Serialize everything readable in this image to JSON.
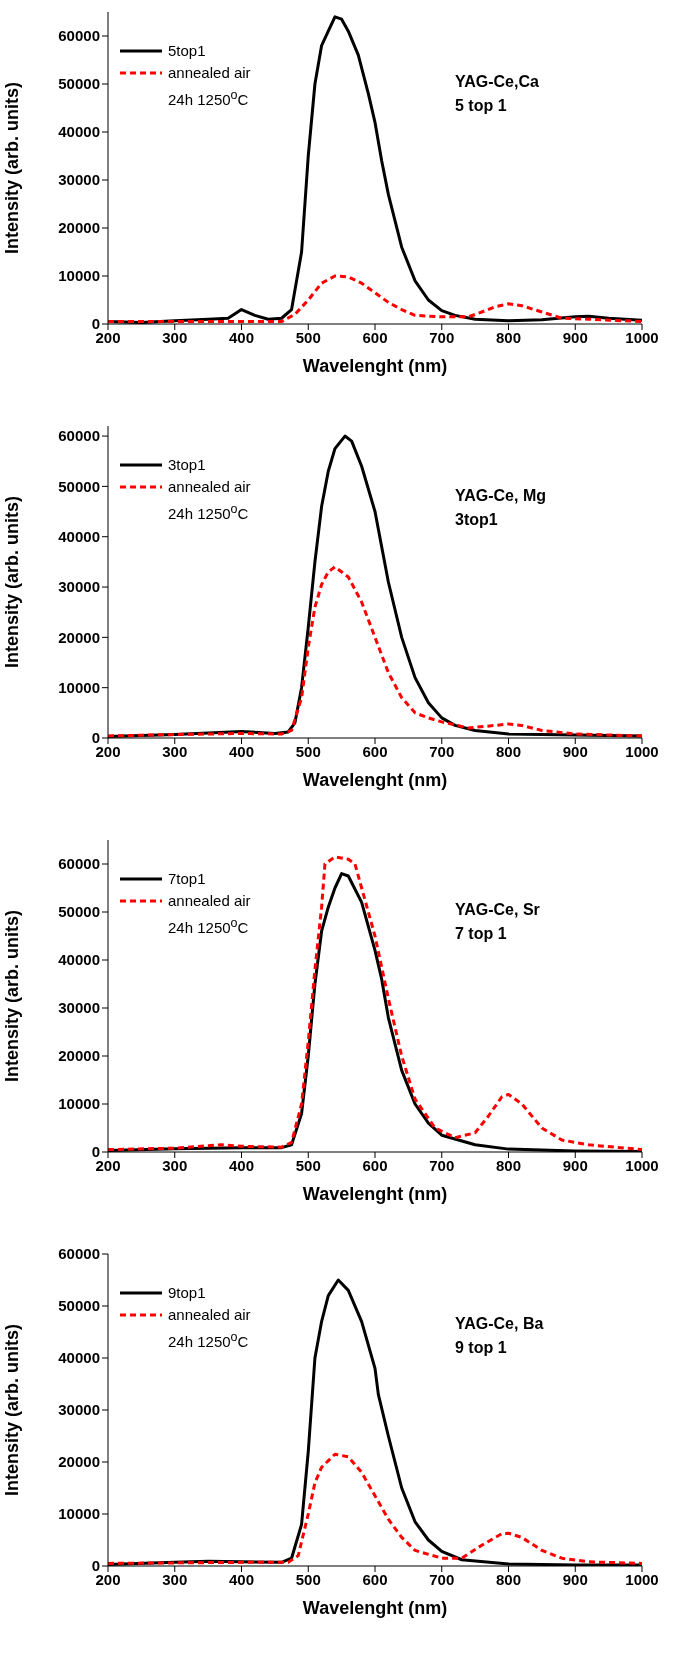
{
  "chart_data": [
    {
      "type": "line",
      "xlabel": "Wavelenght (nm)",
      "ylabel": "Intensity (arb. units)",
      "xlim": [
        200,
        1000
      ],
      "xticks": [
        200,
        300,
        400,
        500,
        600,
        700,
        800,
        900,
        1000
      ],
      "ylim": [
        0,
        65000
      ],
      "yticks": [
        0,
        10000,
        20000,
        30000,
        40000,
        50000,
        60000
      ],
      "legend": "top left",
      "annotations": [
        "YAG-Ce,Ca\n5 top 1"
      ],
      "series": [
        {
          "name": "5top1",
          "color": "#000000",
          "line_style": "solid",
          "x": [
            200,
            250,
            300,
            350,
            380,
            400,
            420,
            440,
            460,
            475,
            490,
            500,
            510,
            520,
            530,
            540,
            550,
            560,
            575,
            590,
            600,
            610,
            620,
            640,
            660,
            680,
            700,
            720,
            750,
            800,
            850,
            900,
            920,
            950,
            1000
          ],
          "values": [
            500,
            300,
            700,
            1000,
            1200,
            3000,
            1800,
            1000,
            1200,
            3000,
            15000,
            35000,
            50000,
            58000,
            61000,
            64000,
            63500,
            61000,
            56000,
            48000,
            42000,
            34000,
            27000,
            16000,
            9000,
            5000,
            2800,
            1800,
            1000,
            700,
            900,
            1500,
            1600,
            1200,
            800
          ]
        },
        {
          "name": "annealed air\n24h 1250$^{o}$C",
          "color": "#ff0000",
          "line_style": "dashed",
          "x": [
            200,
            300,
            400,
            460,
            480,
            500,
            520,
            540,
            560,
            580,
            600,
            620,
            640,
            660,
            700,
            740,
            760,
            780,
            800,
            820,
            850,
            880,
            920,
            1000
          ],
          "values": [
            500,
            500,
            500,
            500,
            2000,
            5000,
            8500,
            10000,
            9800,
            8500,
            6500,
            4500,
            3000,
            1800,
            1500,
            1500,
            2500,
            3600,
            4200,
            3800,
            2500,
            1200,
            1000,
            500
          ]
        }
      ]
    },
    {
      "type": "line",
      "xlabel": "Wavelenght (nm)",
      "ylabel": "Intensity (arb. units)",
      "xlim": [
        200,
        1000
      ],
      "xticks": [
        200,
        300,
        400,
        500,
        600,
        700,
        800,
        900,
        1000
      ],
      "ylim": [
        0,
        62000
      ],
      "yticks": [
        0,
        10000,
        20000,
        30000,
        40000,
        50000,
        60000
      ],
      "legend": "top left",
      "annotations": [
        "YAG-Ce, Mg\n3top1"
      ],
      "series": [
        {
          "name": "3top1",
          "color": "#000000",
          "line_style": "solid",
          "x": [
            200,
            300,
            350,
            400,
            450,
            470,
            480,
            490,
            500,
            510,
            520,
            530,
            540,
            555,
            565,
            580,
            600,
            610,
            620,
            640,
            660,
            680,
            700,
            720,
            750,
            800,
            900,
            1000
          ],
          "values": [
            300,
            700,
            1000,
            1300,
            900,
            1200,
            3000,
            10000,
            22000,
            35000,
            46000,
            53000,
            57500,
            60000,
            59000,
            54000,
            45000,
            38000,
            31000,
            20000,
            12000,
            7000,
            4000,
            2500,
            1500,
            800,
            600,
            400
          ]
        },
        {
          "name": "annealed air\n24h 1250$^{o}$C",
          "color": "#ff0000",
          "line_style": "dashed",
          "x": [
            200,
            300,
            400,
            460,
            475,
            490,
            500,
            510,
            520,
            530,
            540,
            560,
            580,
            600,
            620,
            640,
            660,
            680,
            700,
            740,
            780,
            800,
            820,
            850,
            900,
            1000
          ],
          "values": [
            400,
            700,
            900,
            800,
            1500,
            8000,
            18000,
            26000,
            30500,
            33000,
            34000,
            32000,
            27000,
            20000,
            13000,
            8000,
            5000,
            4000,
            3200,
            2000,
            2500,
            2800,
            2500,
            1500,
            800,
            400
          ]
        }
      ]
    },
    {
      "type": "line",
      "xlabel": "Wavelenght (nm)",
      "ylabel": "Intensity (arb. units)",
      "xlim": [
        200,
        1000
      ],
      "xticks": [
        200,
        300,
        400,
        500,
        600,
        700,
        800,
        900,
        1000
      ],
      "ylim": [
        0,
        65000
      ],
      "yticks": [
        0,
        10000,
        20000,
        30000,
        40000,
        50000,
        60000
      ],
      "legend": "top left",
      "annotations": [
        "YAG-Ce, Sr\n7 top 1"
      ],
      "series": [
        {
          "name": "7top1",
          "color": "#000000",
          "line_style": "solid",
          "x": [
            200,
            300,
            400,
            460,
            475,
            490,
            500,
            510,
            520,
            530,
            540,
            550,
            560,
            580,
            600,
            610,
            620,
            640,
            660,
            680,
            700,
            750,
            800,
            900,
            1000
          ],
          "values": [
            300,
            700,
            900,
            900,
            1500,
            8000,
            20000,
            35000,
            46000,
            51000,
            55000,
            58000,
            57500,
            52000,
            42000,
            36000,
            28000,
            17000,
            10000,
            6000,
            3500,
            1500,
            600,
            200,
            100
          ]
        },
        {
          "name": "annealed air\n24h 1250$^{o}$C",
          "color": "#ff0000",
          "line_style": "dashed",
          "x": [
            200,
            300,
            370,
            400,
            460,
            475,
            490,
            500,
            510,
            520,
            525,
            540,
            560,
            570,
            580,
            600,
            620,
            640,
            660,
            690,
            720,
            750,
            770,
            790,
            800,
            820,
            850,
            880,
            920,
            1000
          ],
          "values": [
            500,
            800,
            1500,
            1200,
            1000,
            2000,
            10000,
            23000,
            38000,
            51000,
            60000,
            61500,
            61000,
            60000,
            55000,
            45000,
            32000,
            20000,
            11000,
            5000,
            3000,
            4000,
            7500,
            11500,
            12000,
            10000,
            5000,
            2500,
            1500,
            500
          ]
        }
      ]
    },
    {
      "type": "line",
      "xlabel": "Wavelenght (nm)",
      "ylabel": "Intensity (arb. units)",
      "xlim": [
        200,
        1000
      ],
      "xticks": [
        200,
        300,
        400,
        500,
        600,
        700,
        800,
        900,
        1000
      ],
      "ylim": [
        0,
        60000
      ],
      "yticks": [
        0,
        10000,
        20000,
        30000,
        40000,
        50000,
        60000
      ],
      "legend": "top left",
      "annotations": [
        "YAG-Ce, Ba\n9 top 1"
      ],
      "series": [
        {
          "name": "9top1",
          "color": "#000000",
          "line_style": "solid",
          "x": [
            200,
            300,
            350,
            400,
            460,
            475,
            490,
            500,
            510,
            520,
            530,
            545,
            560,
            580,
            600,
            605,
            620,
            640,
            660,
            680,
            700,
            730,
            800,
            900,
            1000
          ],
          "values": [
            300,
            700,
            900,
            800,
            700,
            1500,
            8000,
            22000,
            40000,
            47000,
            52000,
            55000,
            53000,
            47000,
            38000,
            33000,
            25000,
            15000,
            8500,
            5000,
            2800,
            1200,
            400,
            200,
            200
          ]
        },
        {
          "name": "annealed air\n24h 1250$^{o}$C",
          "color": "#ff0000",
          "line_style": "dashed",
          "x": [
            200,
            300,
            400,
            470,
            485,
            500,
            510,
            520,
            540,
            560,
            580,
            600,
            620,
            640,
            660,
            700,
            730,
            760,
            790,
            800,
            820,
            850,
            880,
            920,
            1000
          ],
          "values": [
            500,
            600,
            700,
            700,
            2000,
            10000,
            16000,
            19000,
            21500,
            21000,
            18000,
            13500,
            9000,
            5500,
            3000,
            1500,
            1500,
            4000,
            6200,
            6300,
            5500,
            3000,
            1500,
            800,
            500
          ]
        }
      ]
    }
  ]
}
